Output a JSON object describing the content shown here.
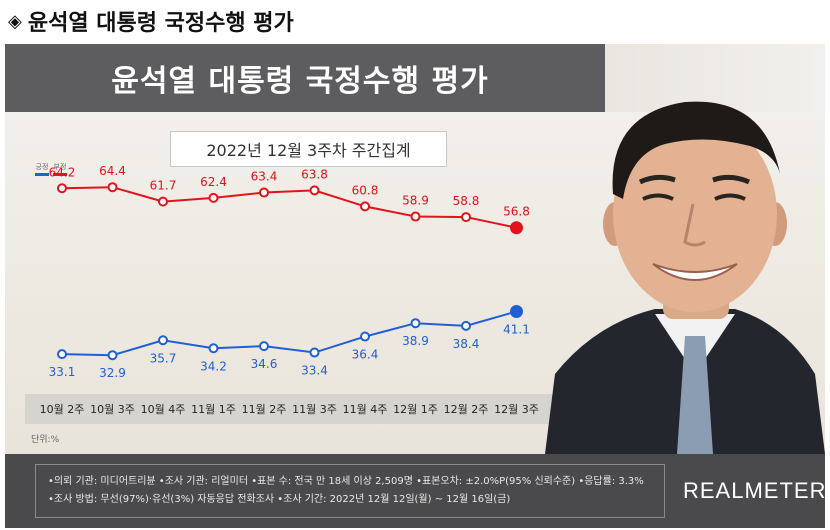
{
  "page": {
    "heading_bullet": "◈",
    "heading": "윤석열 대통령 국정수행 평가",
    "banner_title": "윤석열 대통령 국정수행 평가",
    "subtitle": "2022년 12월 3주차 주간집계",
    "unit_label": "단위:%",
    "brand": "REALMETER",
    "info_line1": "•의뢰 기관: 미디어트리뷴 •조사 기관: 리얼미터 •표본 수: 전국 만 18세 이상 2,509명 •표본오차: ±2.0%P(95% 신뢰수준) •응답률: 3.3%",
    "info_line2": "•조사 방법: 무선(97%)·유선(3%) 자동응답 전화조사 •조사 기간: 2022년 12월 12일(월) ~ 12월 16일(금)"
  },
  "colors": {
    "positive": "#1f5fd6",
    "negative": "#e3131b"
  },
  "chart_data": {
    "type": "line",
    "categories": [
      "10월 2주",
      "10월 3주",
      "10월 4주",
      "11월 1주",
      "11월 2주",
      "11월 3주",
      "11월 4주",
      "12월 1주",
      "12월 2주",
      "12월 3주"
    ],
    "series": [
      {
        "name": "부정",
        "color": "#e3131b",
        "values": [
          64.2,
          64.4,
          61.7,
          62.4,
          63.4,
          63.8,
          60.8,
          58.9,
          58.8,
          56.8
        ]
      },
      {
        "name": "긍정",
        "color": "#1f5fd6",
        "values": [
          33.1,
          32.9,
          35.7,
          34.2,
          34.6,
          33.4,
          36.4,
          38.9,
          38.4,
          41.1
        ]
      }
    ],
    "legend": [
      "긍정",
      "부정"
    ],
    "legend_position": "top-left",
    "ylim": [
      20,
      80
    ],
    "grid": false
  }
}
